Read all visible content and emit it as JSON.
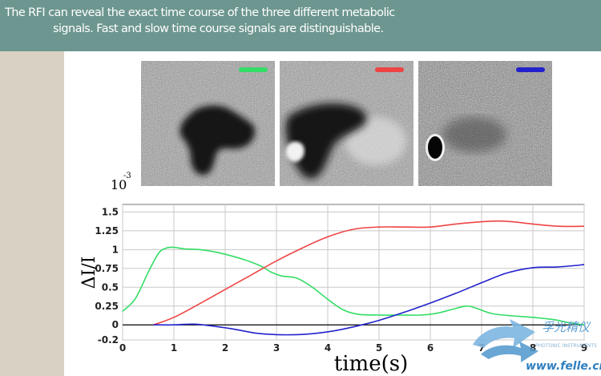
{
  "header": {
    "line1": "The RFI can reveal the exact time course of the three different metabolic",
    "line2": "signals. Fast and slow time course signals are distinguishable."
  },
  "images": [
    {
      "name": "green",
      "bar_color": "#33dd66"
    },
    {
      "name": "red",
      "bar_color": "#ee4444"
    },
    {
      "name": "blue",
      "bar_color": "#2222cc"
    }
  ],
  "chart_data": {
    "type": "line",
    "title": "",
    "xlabel": "time(s)",
    "ylabel": "ΔI/I",
    "exponent_label": "10",
    "exponent_power": "-3",
    "xlim": [
      0,
      9
    ],
    "ylim": [
      -0.2,
      1.6
    ],
    "xticks": [
      "0",
      "1",
      "2",
      "3",
      "4",
      "5",
      "6",
      "7",
      "8",
      "9"
    ],
    "yticks": [
      "1.5",
      "1.25",
      "1",
      "0.75",
      "0.5",
      "0.25",
      "0",
      "-0.2"
    ],
    "yticks_values": [
      1.5,
      1.25,
      1.0,
      0.75,
      0.5,
      0.25,
      0,
      -0.2
    ],
    "grid": true,
    "series": [
      {
        "color": "#33dd66",
        "x": [
          0,
          0.25,
          0.5,
          0.7,
          0.85,
          1.0,
          1.2,
          1.5,
          1.8,
          2.1,
          2.4,
          2.7,
          2.9,
          3.1,
          3.4,
          3.7,
          4.0,
          4.3,
          4.6,
          5.0,
          5.4,
          5.8,
          6.1,
          6.4,
          6.7,
          6.9,
          7.2,
          7.6,
          8.0,
          8.4,
          8.7,
          9.0
        ],
        "y": [
          0.18,
          0.35,
          0.7,
          0.95,
          1.02,
          1.03,
          1.01,
          1.0,
          0.97,
          0.92,
          0.86,
          0.78,
          0.7,
          0.65,
          0.62,
          0.5,
          0.34,
          0.2,
          0.14,
          0.13,
          0.13,
          0.13,
          0.15,
          0.2,
          0.25,
          0.22,
          0.15,
          0.12,
          0.1,
          0.07,
          0.03,
          0.0
        ]
      },
      {
        "color": "#ee4444",
        "x": [
          0.6,
          1.0,
          1.5,
          2.0,
          2.5,
          3.0,
          3.5,
          4.0,
          4.5,
          5.0,
          5.5,
          6.0,
          6.5,
          7.0,
          7.3,
          7.6,
          8.0,
          8.5,
          9.0
        ],
        "y": [
          0.0,
          0.1,
          0.28,
          0.47,
          0.66,
          0.85,
          1.02,
          1.17,
          1.27,
          1.3,
          1.3,
          1.3,
          1.34,
          1.37,
          1.38,
          1.37,
          1.34,
          1.31,
          1.31
        ]
      },
      {
        "color": "#2222cc",
        "x": [
          0.6,
          1.0,
          1.4,
          1.8,
          2.2,
          2.6,
          3.0,
          3.4,
          3.8,
          4.2,
          4.6,
          5.0,
          5.5,
          6.0,
          6.5,
          7.0,
          7.5,
          8.0,
          8.5,
          9.0
        ],
        "y": [
          0.0,
          0.0,
          0.01,
          -0.02,
          -0.06,
          -0.11,
          -0.13,
          -0.13,
          -0.11,
          -0.07,
          -0.01,
          0.06,
          0.17,
          0.29,
          0.42,
          0.56,
          0.69,
          0.76,
          0.77,
          0.8
        ]
      }
    ]
  },
  "watermark": {
    "cn_text": "孚光精仪",
    "en_text": "PHOTONIC INSTRUMENTS",
    "url": "www.felle.cn"
  }
}
